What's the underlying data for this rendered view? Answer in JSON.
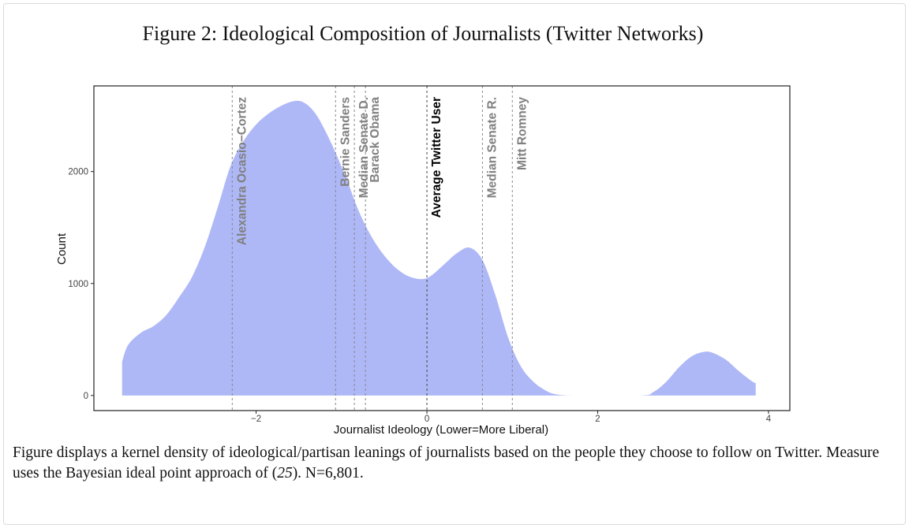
{
  "figure": {
    "number": "Figure 2:",
    "title": "Ideological Composition of Journalists (Twitter Networks)"
  },
  "caption": {
    "text_before": "Figure displays a kernel density of ideological/partisan leanings of journalists based on the people they choose to follow on Twitter. Measure uses the Bayesian ideal point approach of (",
    "citation": "25",
    "text_after": "). N=6,801."
  },
  "colors": {
    "fill": "#aeb8f7",
    "axis": "#222222",
    "ref_line": "#888888",
    "label_gray": "#808080",
    "label_highlight": "#000000"
  },
  "chart_data": {
    "type": "area",
    "title": "",
    "xlabel": "Journalist Ideology (Lower=More Liberal)",
    "ylabel": "Count",
    "xlim": [
      -3.9,
      4.25
    ],
    "ylim": [
      -135,
      2765
    ],
    "x_ticks": [
      -2,
      0,
      2,
      4
    ],
    "x_tick_labels": [
      "−2",
      "0",
      "2",
      "4"
    ],
    "y_ticks": [
      0,
      1000,
      2000
    ],
    "y_tick_labels": [
      "0",
      "1000",
      "2000"
    ],
    "series": [
      {
        "name": "Journalist ideology density",
        "x": [
          -3.57,
          -3.5,
          -3.35,
          -3.2,
          -3.05,
          -2.9,
          -2.75,
          -2.6,
          -2.45,
          -2.3,
          -2.15,
          -2.0,
          -1.85,
          -1.7,
          -1.55,
          -1.45,
          -1.35,
          -1.25,
          -1.1,
          -0.95,
          -0.8,
          -0.65,
          -0.5,
          -0.35,
          -0.2,
          -0.05,
          0.05,
          0.2,
          0.35,
          0.5,
          0.65,
          0.8,
          0.95,
          1.1,
          1.25,
          1.4,
          1.5,
          1.6,
          1.7,
          2.5,
          2.65,
          2.8,
          2.95,
          3.1,
          3.25,
          3.35,
          3.5,
          3.65,
          3.8,
          3.85
        ],
        "y": [
          300,
          450,
          560,
          620,
          720,
          880,
          1060,
          1330,
          1680,
          2050,
          2270,
          2420,
          2520,
          2590,
          2630,
          2620,
          2560,
          2450,
          2220,
          1950,
          1650,
          1420,
          1250,
          1130,
          1060,
          1040,
          1070,
          1170,
          1270,
          1320,
          1210,
          900,
          520,
          260,
          120,
          40,
          12,
          3,
          0,
          0,
          30,
          120,
          250,
          350,
          390,
          380,
          320,
          220,
          130,
          110
        ]
      }
    ],
    "reference_lines": [
      {
        "label": "Alexandra Ocasio−Cortez",
        "x": -2.28,
        "highlight": false
      },
      {
        "label": "Bernie Sanders",
        "x": -1.07,
        "highlight": false
      },
      {
        "label": "Median Senate D.",
        "x": -0.85,
        "highlight": false
      },
      {
        "label": "Barack Obama",
        "x": -0.72,
        "highlight": false
      },
      {
        "label": "Average Twitter User",
        "x": 0.0,
        "highlight": true
      },
      {
        "label": "Median Senate R.",
        "x": 0.65,
        "highlight": false
      },
      {
        "label": "Mitt Romney",
        "x": 1.0,
        "highlight": false
      }
    ],
    "grid": false
  }
}
